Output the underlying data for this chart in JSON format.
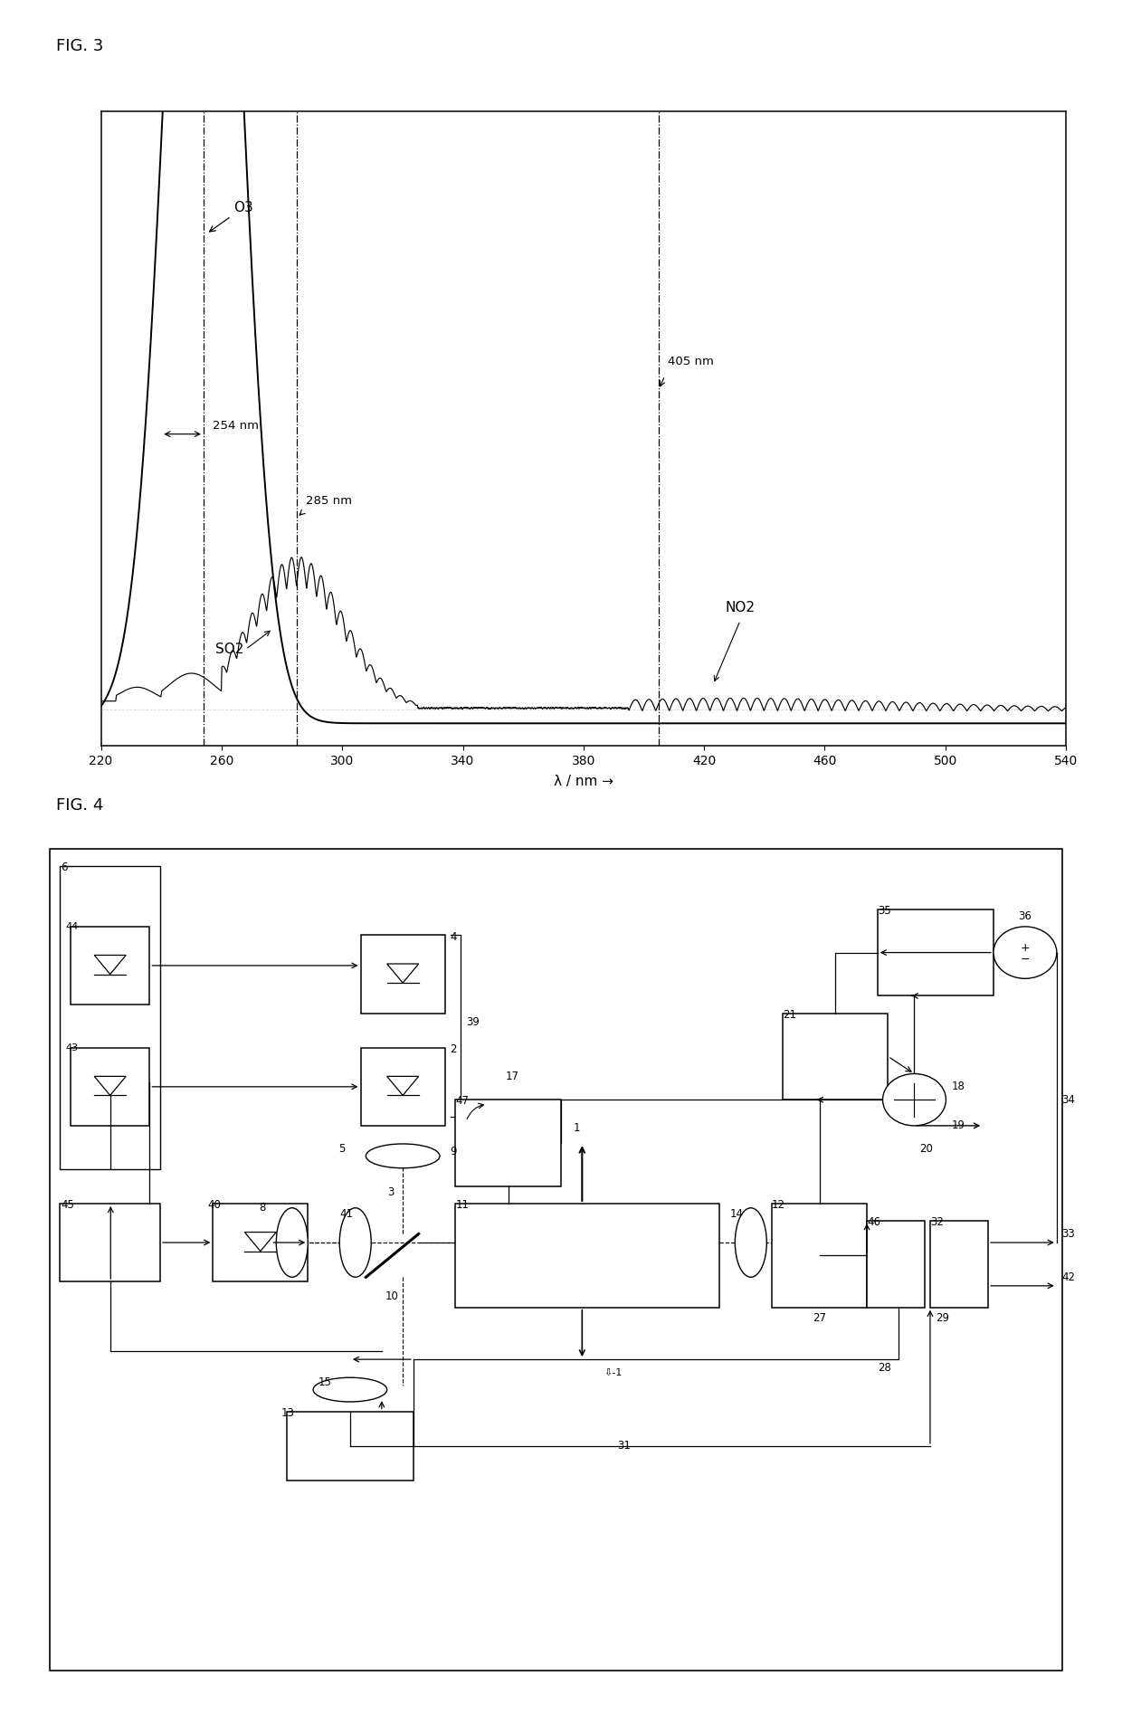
{
  "fig3_label": "FIG. 3",
  "fig4_label": "FIG. 4",
  "spec_xlim": [
    220,
    540
  ],
  "spec_xticks": [
    220,
    260,
    300,
    340,
    380,
    420,
    460,
    500,
    540
  ],
  "spec_xlabel": "λ / nm →",
  "vline_254": 254,
  "vline_285": 285,
  "vline_405": 405,
  "bg_color": "#ffffff"
}
